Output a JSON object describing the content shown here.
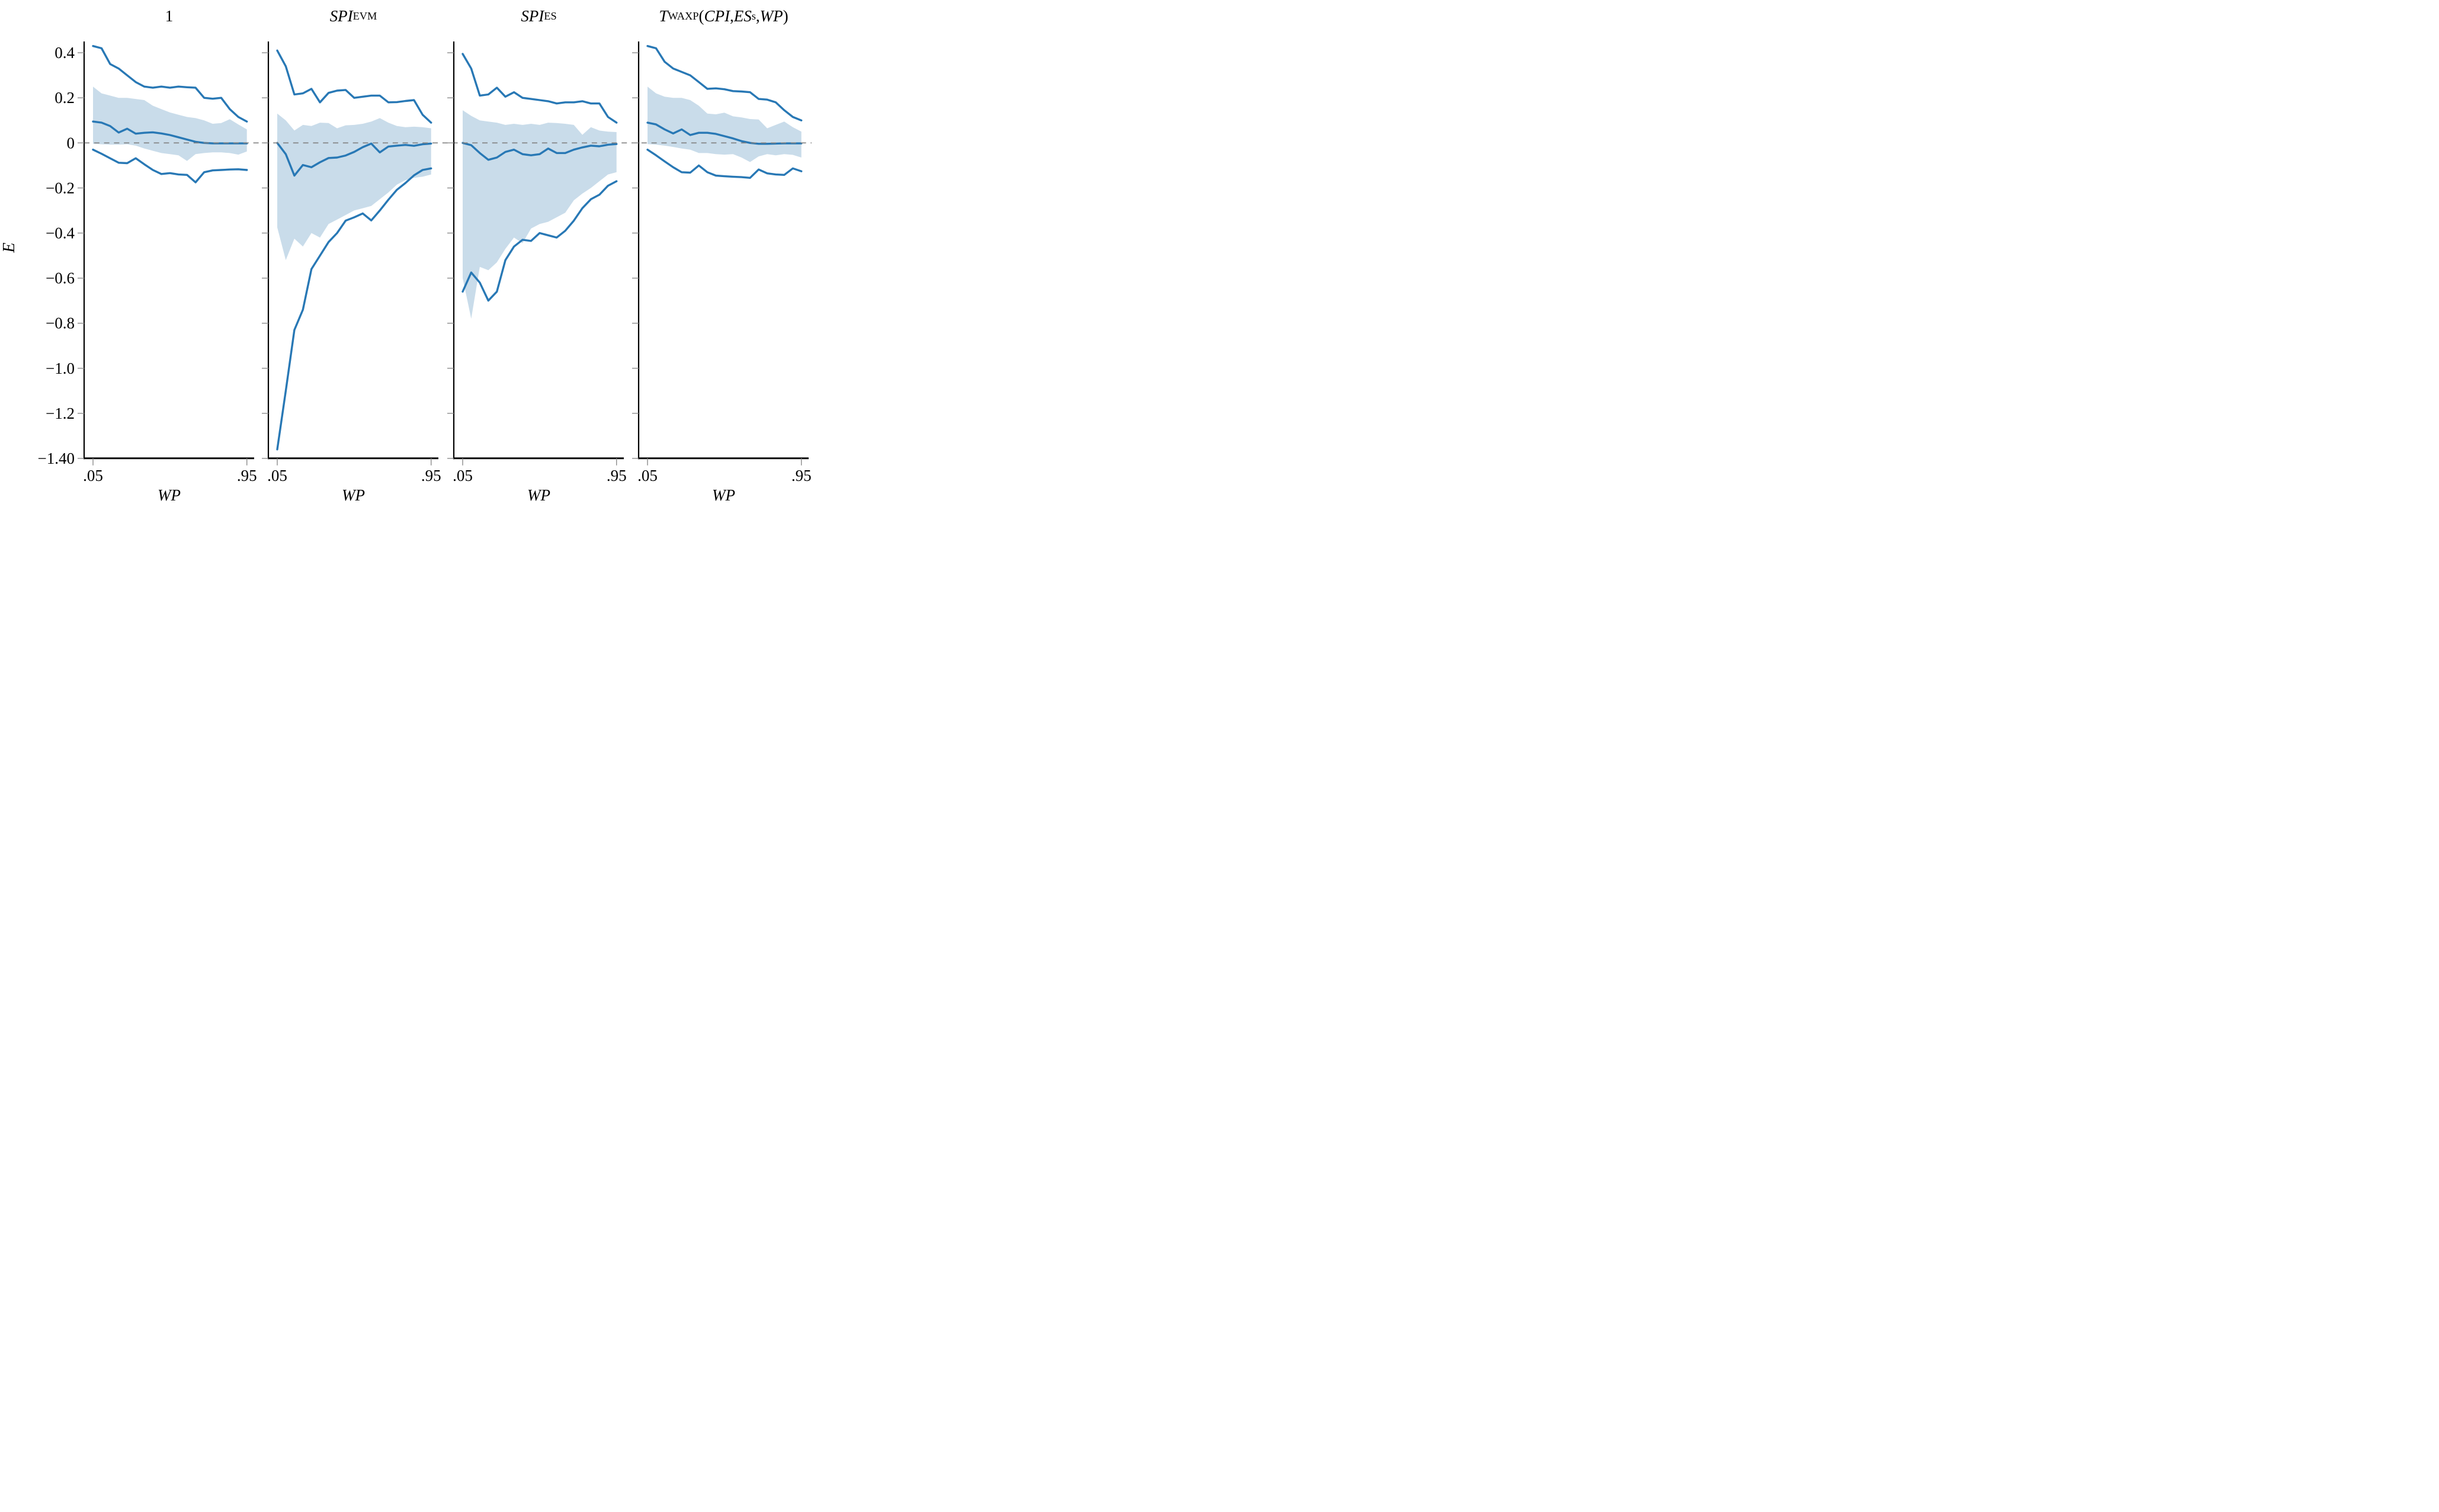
{
  "figure": {
    "background": "#ffffff",
    "y_axis": {
      "label": "E",
      "min": -1.4,
      "max": 0.45,
      "ticks": [
        {
          "v": 0.4,
          "label": "0.4"
        },
        {
          "v": 0.2,
          "label": "0.2"
        },
        {
          "v": 0.0,
          "label": "0"
        },
        {
          "v": -0.2,
          "label": "−0.2"
        },
        {
          "v": -0.4,
          "label": "−0.4"
        },
        {
          "v": -0.6,
          "label": "−0.6"
        },
        {
          "v": -0.8,
          "label": "−0.8"
        },
        {
          "v": -1.0,
          "label": "−1.0"
        },
        {
          "v": -1.2,
          "label": "−1.2"
        },
        {
          "v": -1.4,
          "label": "−1.40"
        }
      ]
    },
    "x_axis": {
      "label": "WP",
      "ticks": [
        {
          "v": 0.05,
          "label": ".05"
        },
        {
          "v": 0.95,
          "label": ".95"
        }
      ]
    },
    "zero_line": {
      "value": 0,
      "style": "dashed",
      "color": "#808080"
    }
  },
  "colors": {
    "line": "#2878b5",
    "band": "#c9dcea",
    "dashed": "#808080",
    "tick": "#8c8c8c",
    "axis": "#000000"
  },
  "chart_data": [
    {
      "type": "line",
      "title_plain": "1",
      "title_segments": [
        {
          "text": "1",
          "style": "roman"
        }
      ],
      "xlabel": "WP",
      "ylabel": "E",
      "xlim": [
        0.0,
        1.0
      ],
      "ylim": [
        -1.4,
        0.45
      ],
      "grid": false,
      "legend": "none",
      "x": [
        0.05,
        0.1,
        0.15,
        0.2,
        0.25,
        0.3,
        0.35,
        0.4,
        0.45,
        0.5,
        0.55,
        0.6,
        0.65,
        0.7,
        0.75,
        0.8,
        0.85,
        0.9,
        0.95
      ],
      "series": [
        {
          "name": "upper_ci",
          "role": "line",
          "values": [
            0.43,
            0.42,
            0.35,
            0.33,
            0.3,
            0.27,
            0.25,
            0.245,
            0.25,
            0.245,
            0.25,
            0.247,
            0.245,
            0.2,
            0.196,
            0.2,
            0.15,
            0.115,
            0.095
          ]
        },
        {
          "name": "band_upper",
          "role": "band-edge",
          "values": [
            0.25,
            0.22,
            0.21,
            0.2,
            0.2,
            0.195,
            0.19,
            0.165,
            0.15,
            0.135,
            0.125,
            0.115,
            0.11,
            0.1,
            0.085,
            0.088,
            0.105,
            0.082,
            0.06
          ]
        },
        {
          "name": "point_estimate",
          "role": "line",
          "values": [
            0.095,
            0.09,
            0.075,
            0.046,
            0.063,
            0.041,
            0.045,
            0.047,
            0.042,
            0.035,
            0.025,
            0.015,
            0.005,
            0.0,
            -0.002,
            -0.002,
            -0.002,
            -0.002,
            -0.002
          ]
        },
        {
          "name": "band_lower",
          "role": "band-edge",
          "values": [
            -0.004,
            -0.006,
            -0.008,
            -0.008,
            -0.006,
            -0.012,
            -0.025,
            -0.035,
            -0.045,
            -0.05,
            -0.055,
            -0.08,
            -0.05,
            -0.045,
            -0.042,
            -0.042,
            -0.045,
            -0.052,
            -0.038
          ]
        },
        {
          "name": "lower_ci",
          "role": "line",
          "values": [
            -0.03,
            -0.048,
            -0.068,
            -0.088,
            -0.09,
            -0.068,
            -0.095,
            -0.12,
            -0.138,
            -0.134,
            -0.14,
            -0.142,
            -0.175,
            -0.13,
            -0.122,
            -0.12,
            -0.118,
            -0.117,
            -0.12
          ]
        }
      ]
    },
    {
      "type": "line",
      "title_plain": "SPI^EVM",
      "title_segments": [
        {
          "text": "SPI",
          "style": "italic"
        },
        {
          "text": "EVM",
          "style": "sup"
        }
      ],
      "xlabel": "WP",
      "ylabel": "E",
      "xlim": [
        0.0,
        1.0
      ],
      "ylim": [
        -1.4,
        0.45
      ],
      "grid": false,
      "legend": "none",
      "x": [
        0.05,
        0.1,
        0.15,
        0.2,
        0.25,
        0.3,
        0.35,
        0.4,
        0.45,
        0.5,
        0.55,
        0.6,
        0.65,
        0.7,
        0.75,
        0.8,
        0.85,
        0.9,
        0.95
      ],
      "series": [
        {
          "name": "upper_ci",
          "role": "line",
          "values": [
            0.41,
            0.34,
            0.215,
            0.22,
            0.24,
            0.18,
            0.222,
            0.232,
            0.235,
            0.2,
            0.205,
            0.21,
            0.21,
            0.18,
            0.181,
            0.186,
            0.19,
            0.125,
            0.09
          ]
        },
        {
          "name": "band_upper",
          "role": "band-edge",
          "values": [
            0.13,
            0.1,
            0.055,
            0.08,
            0.075,
            0.09,
            0.088,
            0.065,
            0.078,
            0.08,
            0.085,
            0.095,
            0.11,
            0.09,
            0.075,
            0.07,
            0.072,
            0.07,
            0.065
          ]
        },
        {
          "name": "point_estimate",
          "role": "line",
          "values": [
            0.0,
            -0.05,
            -0.145,
            -0.098,
            -0.108,
            -0.086,
            -0.067,
            -0.065,
            -0.056,
            -0.04,
            -0.019,
            -0.003,
            -0.042,
            -0.016,
            -0.012,
            -0.009,
            -0.013,
            -0.006,
            -0.003
          ]
        },
        {
          "name": "band_lower",
          "role": "band-edge",
          "values": [
            -0.375,
            -0.52,
            -0.425,
            -0.46,
            -0.4,
            -0.42,
            -0.36,
            -0.34,
            -0.32,
            -0.3,
            -0.29,
            -0.28,
            -0.25,
            -0.22,
            -0.185,
            -0.165,
            -0.155,
            -0.15,
            -0.14
          ]
        },
        {
          "name": "lower_ci",
          "role": "line",
          "values": [
            -1.36,
            -1.1,
            -0.83,
            -0.74,
            -0.56,
            -0.5,
            -0.44,
            -0.4,
            -0.345,
            -0.33,
            -0.313,
            -0.344,
            -0.3,
            -0.252,
            -0.208,
            -0.178,
            -0.144,
            -0.12,
            -0.113
          ]
        }
      ]
    },
    {
      "type": "line",
      "title_plain": "SPI^ES",
      "title_segments": [
        {
          "text": "SPI",
          "style": "italic"
        },
        {
          "text": "ES",
          "style": "sup"
        }
      ],
      "xlabel": "WP",
      "ylabel": "E",
      "xlim": [
        0.0,
        1.0
      ],
      "ylim": [
        -1.4,
        0.45
      ],
      "grid": false,
      "legend": "none",
      "x": [
        0.05,
        0.1,
        0.15,
        0.2,
        0.25,
        0.3,
        0.35,
        0.4,
        0.45,
        0.5,
        0.55,
        0.6,
        0.65,
        0.7,
        0.75,
        0.8,
        0.85,
        0.9,
        0.95
      ],
      "series": [
        {
          "name": "upper_ci",
          "role": "line",
          "values": [
            0.395,
            0.33,
            0.21,
            0.215,
            0.245,
            0.205,
            0.225,
            0.2,
            0.195,
            0.19,
            0.185,
            0.175,
            0.18,
            0.18,
            0.185,
            0.175,
            0.175,
            0.115,
            0.09
          ]
        },
        {
          "name": "band_upper",
          "role": "band-edge",
          "values": [
            0.145,
            0.12,
            0.1,
            0.095,
            0.09,
            0.08,
            0.085,
            0.08,
            0.085,
            0.08,
            0.09,
            0.088,
            0.085,
            0.08,
            0.036,
            0.07,
            0.055,
            0.05,
            0.048
          ]
        },
        {
          "name": "point_estimate",
          "role": "line",
          "values": [
            0.0,
            -0.01,
            -0.045,
            -0.075,
            -0.065,
            -0.04,
            -0.03,
            -0.05,
            -0.055,
            -0.05,
            -0.025,
            -0.045,
            -0.045,
            -0.03,
            -0.02,
            -0.012,
            -0.015,
            -0.008,
            -0.005
          ]
        },
        {
          "name": "band_lower",
          "role": "band-edge",
          "values": [
            -0.6,
            -0.78,
            -0.55,
            -0.565,
            -0.53,
            -0.47,
            -0.42,
            -0.445,
            -0.38,
            -0.36,
            -0.35,
            -0.33,
            -0.31,
            -0.255,
            -0.225,
            -0.2,
            -0.17,
            -0.14,
            -0.13
          ]
        },
        {
          "name": "lower_ci",
          "role": "line",
          "values": [
            -0.66,
            -0.575,
            -0.62,
            -0.7,
            -0.66,
            -0.52,
            -0.46,
            -0.43,
            -0.435,
            -0.4,
            -0.41,
            -0.42,
            -0.39,
            -0.345,
            -0.29,
            -0.25,
            -0.23,
            -0.19,
            -0.17
          ]
        }
      ]
    },
    {
      "type": "line",
      "title_plain": "T^WAXP(CPI, ES_s, WP)",
      "title_segments": [
        {
          "text": "T",
          "style": "italic"
        },
        {
          "text": "WAXP",
          "style": "sup"
        },
        {
          "text": "(",
          "style": "roman"
        },
        {
          "text": "CPI",
          "style": "italic"
        },
        {
          "text": ", ",
          "style": "roman"
        },
        {
          "text": "ES",
          "style": "italic"
        },
        {
          "text": "s",
          "style": "sub"
        },
        {
          "text": ", ",
          "style": "roman"
        },
        {
          "text": "WP",
          "style": "italic"
        },
        {
          "text": ")",
          "style": "roman"
        }
      ],
      "xlabel": "WP",
      "ylabel": "E",
      "xlim": [
        0.0,
        1.0
      ],
      "ylim": [
        -1.4,
        0.45
      ],
      "grid": false,
      "legend": "none",
      "x": [
        0.05,
        0.1,
        0.15,
        0.2,
        0.25,
        0.3,
        0.35,
        0.4,
        0.45,
        0.5,
        0.55,
        0.6,
        0.65,
        0.7,
        0.75,
        0.8,
        0.85,
        0.9,
        0.95
      ],
      "series": [
        {
          "name": "upper_ci",
          "role": "line",
          "values": [
            0.43,
            0.42,
            0.36,
            0.33,
            0.315,
            0.3,
            0.27,
            0.24,
            0.242,
            0.238,
            0.23,
            0.228,
            0.225,
            0.195,
            0.192,
            0.18,
            0.145,
            0.115,
            0.1
          ]
        },
        {
          "name": "band_upper",
          "role": "band-edge",
          "values": [
            0.25,
            0.22,
            0.205,
            0.2,
            0.2,
            0.19,
            0.165,
            0.13,
            0.127,
            0.134,
            0.118,
            0.113,
            0.106,
            0.104,
            0.065,
            0.08,
            0.095,
            0.07,
            0.05
          ]
        },
        {
          "name": "point_estimate",
          "role": "line",
          "values": [
            0.09,
            0.082,
            0.06,
            0.042,
            0.06,
            0.035,
            0.045,
            0.045,
            0.04,
            0.03,
            0.02,
            0.008,
            0.0,
            -0.004,
            -0.004,
            -0.003,
            -0.002,
            -0.002,
            -0.002
          ]
        },
        {
          "name": "band_lower",
          "role": "band-edge",
          "values": [
            -0.005,
            -0.008,
            -0.012,
            -0.018,
            -0.025,
            -0.03,
            -0.045,
            -0.045,
            -0.05,
            -0.052,
            -0.05,
            -0.065,
            -0.085,
            -0.06,
            -0.05,
            -0.055,
            -0.05,
            -0.053,
            -0.065
          ]
        },
        {
          "name": "lower_ci",
          "role": "line",
          "values": [
            -0.03,
            -0.055,
            -0.082,
            -0.108,
            -0.13,
            -0.132,
            -0.1,
            -0.13,
            -0.145,
            -0.148,
            -0.15,
            -0.152,
            -0.155,
            -0.118,
            -0.135,
            -0.14,
            -0.142,
            -0.113,
            -0.126
          ]
        }
      ]
    }
  ]
}
